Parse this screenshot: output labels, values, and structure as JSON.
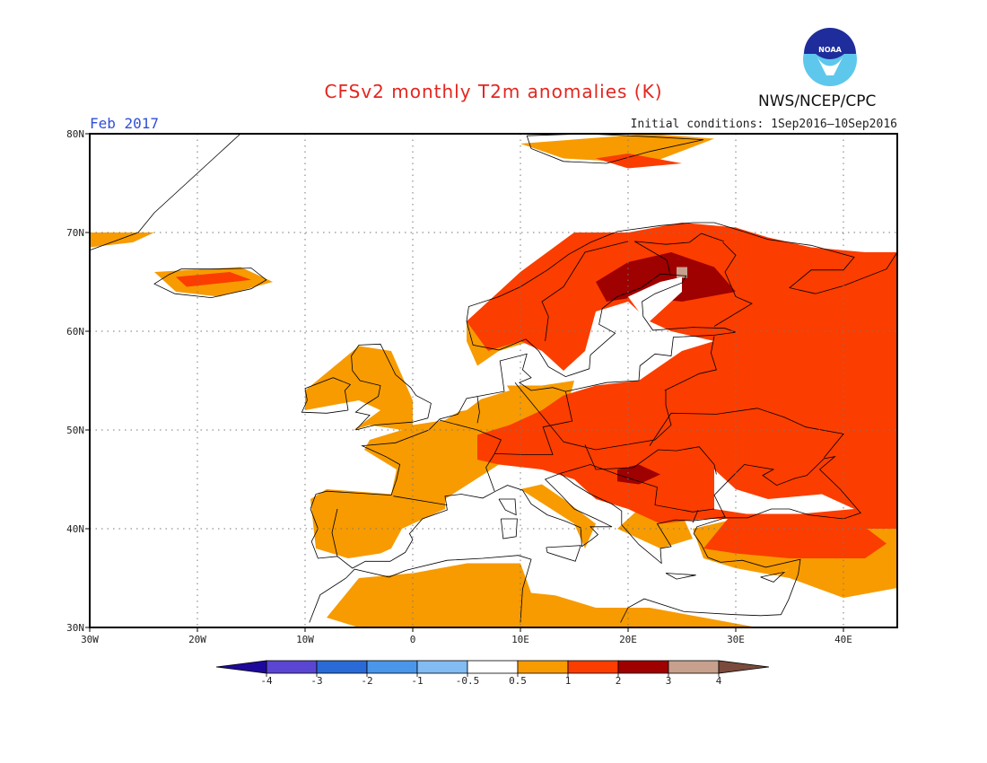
{
  "header": {
    "title": "CFSv2 monthly T2m anomalies (K)",
    "agency": "NWS/NCEP/CPC",
    "logo_text": "NOAA",
    "period": "Feb 2017",
    "initial_conditions": "Initial conditions: 1Sep2016–10Sep2016"
  },
  "map": {
    "lon_range": [
      -30,
      45
    ],
    "lat_range": [
      30,
      80
    ],
    "lat_labels": [
      "80N",
      "70N",
      "60N",
      "50N",
      "40N",
      "30N"
    ],
    "lon_labels": [
      "30W",
      "20W",
      "10W",
      "0",
      "10E",
      "20E",
      "30E",
      "40E"
    ]
  },
  "colorbar": {
    "levels": [
      "-4",
      "-3",
      "-2",
      "-1",
      "-0.5",
      "0.5",
      "1",
      "2",
      "3",
      "4"
    ],
    "colors": [
      "#1e0a9a",
      "#5a46d2",
      "#2a6ad6",
      "#4a96ea",
      "#82bcf2",
      "#ffffff",
      "#f79b00",
      "#fb3d00",
      "#9f0000",
      "#c8a08e",
      "#7a4a3c"
    ]
  }
}
